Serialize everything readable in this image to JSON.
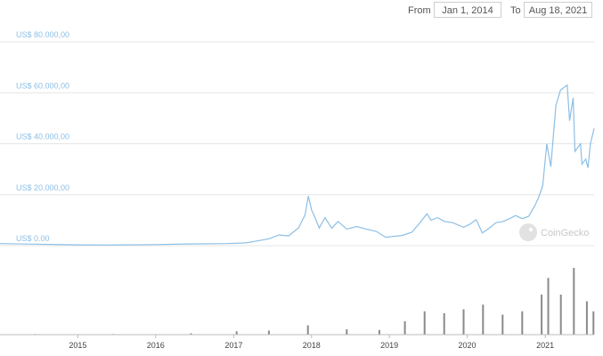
{
  "date_range": {
    "from_label": "From",
    "from_value": "Jan 1, 2014",
    "to_label": "To",
    "to_value": "Aug 18, 2021"
  },
  "watermark": "CoinGecko",
  "colors": {
    "price_line": "#8cbfe6",
    "volume": "#8a8a8a",
    "grid": "#e6e6e6",
    "axis_text": "#8cbfe6"
  },
  "chart_data": [
    {
      "type": "line",
      "title": "",
      "xlabel": "",
      "ylabel": "",
      "x_ticks": [
        "2015",
        "2016",
        "2017",
        "2018",
        "2019",
        "2020",
        "2021"
      ],
      "y_ticks": [
        {
          "value": 0,
          "label": "US$ 0.00"
        },
        {
          "value": 20000,
          "label": "US$ 20.000,00"
        },
        {
          "value": 40000,
          "label": "US$ 40.000,00"
        },
        {
          "value": 60000,
          "label": "US$ 60.000,00"
        },
        {
          "value": 80000,
          "label": "US$ 80.000,00"
        }
      ],
      "xlim": [
        "2014-01-01",
        "2021-08-18"
      ],
      "ylim": [
        0,
        80000
      ],
      "grid": true,
      "series": [
        {
          "x": [
            "2014-01-01",
            "2014-06-01",
            "2015-01-01",
            "2015-06-01",
            "2016-01-01",
            "2016-06-01",
            "2016-12-01",
            "2017-03-01",
            "2017-05-01",
            "2017-06-15",
            "2017-08-01",
            "2017-09-15",
            "2017-11-01",
            "2017-12-01",
            "2017-12-17",
            "2018-01-01",
            "2018-01-15",
            "2018-02-06",
            "2018-03-05",
            "2018-04-06",
            "2018-05-05",
            "2018-06-15",
            "2018-08-01",
            "2018-09-15",
            "2018-11-01",
            "2018-12-15",
            "2019-01-15",
            "2019-03-01",
            "2019-04-15",
            "2019-05-15",
            "2019-06-26",
            "2019-07-15",
            "2019-08-15",
            "2019-09-15",
            "2019-10-25",
            "2019-12-15",
            "2020-01-15",
            "2020-02-12",
            "2020-03-12",
            "2020-04-15",
            "2020-05-15",
            "2020-06-15",
            "2020-07-15",
            "2020-08-15",
            "2020-09-15",
            "2020-10-15",
            "2020-11-15",
            "2020-12-01",
            "2020-12-20",
            "2021-01-08",
            "2021-01-27",
            "2021-02-20",
            "2021-03-13",
            "2021-04-14",
            "2021-04-25",
            "2021-05-12",
            "2021-05-20",
            "2021-06-15",
            "2021-06-22",
            "2021-07-10",
            "2021-07-20",
            "2021-08-01",
            "2021-08-18"
          ],
          "values": [
            800,
            600,
            300,
            230,
            430,
            650,
            800,
            1100,
            2000,
            2700,
            4200,
            3800,
            7000,
            12000,
            19500,
            14000,
            11500,
            6900,
            11000,
            6800,
            9500,
            6500,
            7500,
            6500,
            5600,
            3300,
            3600,
            4000,
            5200,
            8000,
            12500,
            10000,
            11000,
            9500,
            9000,
            7200,
            8500,
            10200,
            5000,
            7000,
            9000,
            9400,
            10500,
            11800,
            10600,
            11500,
            16000,
            19000,
            23500,
            40000,
            31000,
            55000,
            61000,
            63000,
            49000,
            58000,
            37000,
            40000,
            32000,
            34000,
            30500,
            40000,
            46000
          ]
        }
      ]
    },
    {
      "type": "bar",
      "title": "",
      "series": [
        {
          "x": [
            "2014-06",
            "2015-06",
            "2016-06",
            "2017-01",
            "2017-06",
            "2017-12",
            "2018-06",
            "2018-11",
            "2019-03",
            "2019-06",
            "2019-09",
            "2019-12",
            "2020-03",
            "2020-06",
            "2020-09",
            "2020-12",
            "2021-01",
            "2021-03",
            "2021-05",
            "2021-07",
            "2021-08"
          ],
          "values": [
            0.01,
            0.01,
            0.02,
            0.05,
            0.06,
            0.14,
            0.08,
            0.07,
            0.2,
            0.35,
            0.32,
            0.38,
            0.45,
            0.3,
            0.35,
            0.6,
            0.85,
            0.6,
            1.0,
            0.5,
            0.35
          ]
        }
      ]
    }
  ]
}
